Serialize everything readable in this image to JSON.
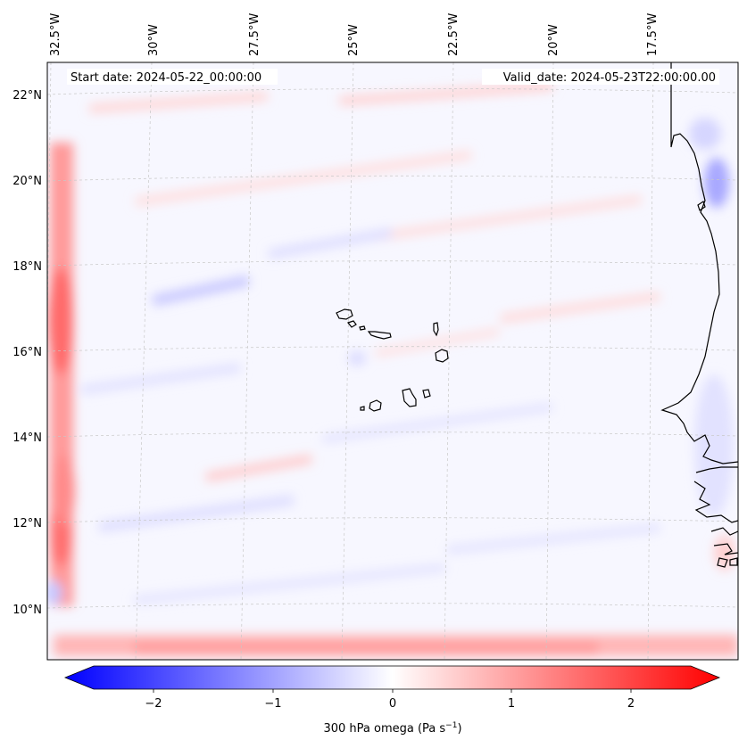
{
  "header": {
    "start_date": "Start date: 2024-05-22_00:00:00",
    "valid_date": "Valid_date: 2024-05-23T22:00:00.00"
  },
  "map": {
    "region": "Cabo Verde and West African coast",
    "lon_labels": [
      "32.5°W",
      "30°W",
      "27.5°W",
      "25°W",
      "22.5°W",
      "20°W",
      "17.5°W"
    ],
    "lat_labels": [
      "22°N",
      "20°N",
      "18°N",
      "16°N",
      "14°N",
      "12°N",
      "10°N"
    ],
    "gridlines": true,
    "coastline_color": "#000000",
    "gridline_color": "#c8c8c8"
  },
  "colorbar": {
    "label_prefix": "300 hPa omega (Pa s",
    "label_exponent": "−1",
    "label_suffix": ")",
    "ticks": [
      "−2",
      "−1",
      "0",
      "1",
      "2"
    ],
    "vmin": -2.5,
    "vmax": 2.5,
    "cmap": "bwr",
    "color_low": "#0000ff",
    "color_mid": "#ffffff",
    "color_high": "#ff0000"
  }
}
